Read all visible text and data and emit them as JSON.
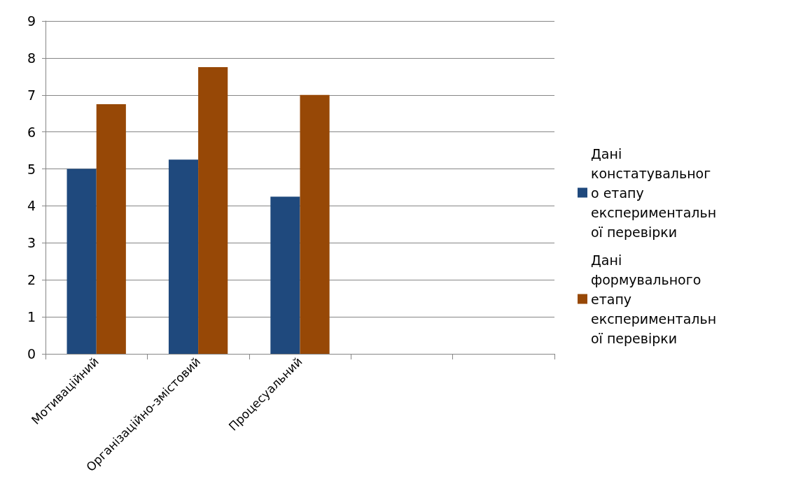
{
  "chart_data": {
    "type": "bar",
    "categories": [
      "Мотиваційний",
      "Організаційно-змістовий",
      "Процесуальний",
      null,
      null
    ],
    "series": [
      {
        "name": "Дані констатувального етапу експериментальної перевірки",
        "color": "#1f497d",
        "values": [
          5,
          5.25,
          4.25,
          null,
          null
        ]
      },
      {
        "name": "Дані формувального етапу експериментальної перевірки",
        "color": "#974806",
        "values": [
          6.75,
          7.75,
          7,
          null,
          null
        ]
      }
    ],
    "ylim": [
      0,
      9
    ],
    "yticks": [
      0,
      1,
      2,
      3,
      4,
      5,
      6,
      7,
      8,
      9
    ],
    "grid": "y",
    "legend": "right"
  }
}
